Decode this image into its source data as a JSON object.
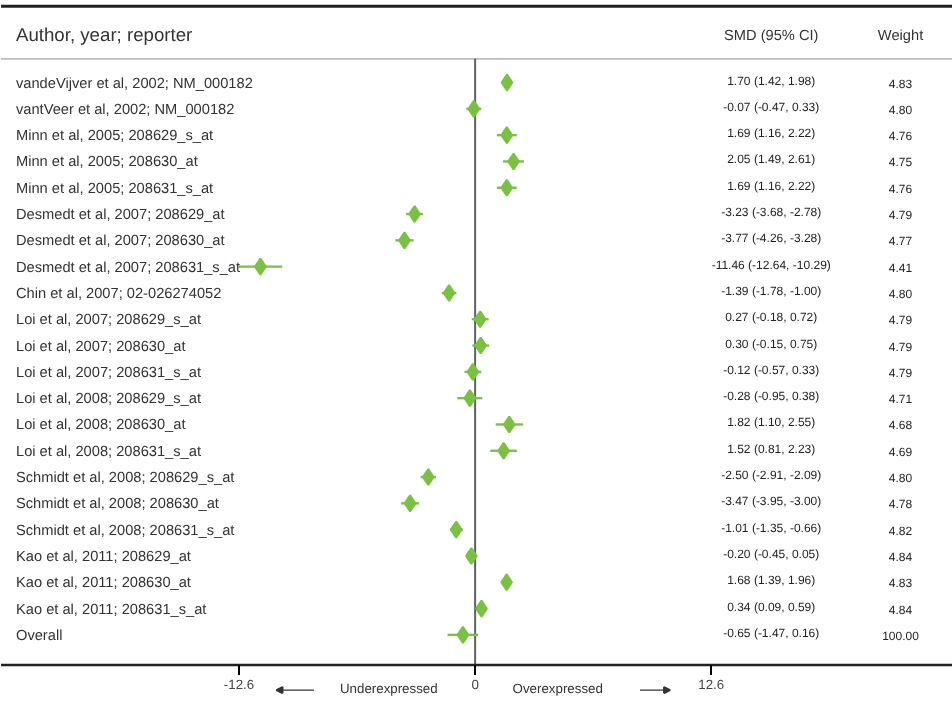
{
  "chart_data": {
    "type": "scatter",
    "orientation": "horizontal",
    "title": "Author, year; reporter",
    "categories": [
      "vandeVijver et al, 2002; NM_000182",
      "vantVeer et al, 2002; NM_000182",
      "Minn et al, 2005; 208629_s_at",
      "Minn et al, 2005; 208630_at",
      "Minn et al, 2005; 208631_s_at",
      "Desmedt et al, 2007; 208629_at",
      "Desmedt et al, 2007; 208630_at",
      "Desmedt et al, 2007; 208631_s_at",
      "Chin et al, 2007; 02-026274052",
      "Loi et al, 2007; 208629_s_at",
      "Loi et al, 2007; 208630_at",
      "Loi et al, 2007; 208631_s_at",
      "Loi et al, 2008; 208629_s_at",
      "Loi et al, 2008; 208630_at",
      "Loi et al, 2008; 208631_s_at",
      "Schmidt et al, 2008; 208629_s_at",
      "Schmidt et al, 2008; 208630_at",
      "Schmidt et al, 2008; 208631_s_at",
      "Kao et al, 2011; 208629_at",
      "Kao et al, 2011; 208630_at",
      "Kao et al, 2011; 208631_s_at",
      "Overall"
    ],
    "series": [
      {
        "color": "#7ac143",
        "values": [
          1.7,
          -0.07,
          1.69,
          2.05,
          1.69,
          -3.23,
          -3.77,
          -11.46,
          -1.39,
          0.27,
          0.3,
          -0.12,
          -0.28,
          1.82,
          1.52,
          -2.5,
          -3.47,
          -1.01,
          -0.2,
          1.68,
          0.34,
          -0.65
        ],
        "errors": [
          [
            1.42,
            1.98
          ],
          [
            -0.47,
            0.33
          ],
          [
            1.16,
            2.22
          ],
          [
            1.49,
            2.61
          ],
          [
            1.16,
            2.22
          ],
          [
            -3.68,
            -2.78
          ],
          [
            -4.26,
            -3.28
          ],
          [
            -12.64,
            -10.29
          ],
          [
            -1.78,
            -1.0
          ],
          [
            -0.18,
            0.72
          ],
          [
            -0.15,
            0.75
          ],
          [
            -0.57,
            0.33
          ],
          [
            -0.95,
            0.38
          ],
          [
            1.1,
            2.55
          ],
          [
            0.81,
            2.23
          ],
          [
            -2.91,
            -2.09
          ],
          [
            -3.95,
            -3.0
          ],
          [
            -1.35,
            -0.66
          ],
          [
            -0.45,
            0.05
          ],
          [
            1.39,
            1.96
          ],
          [
            0.09,
            0.59
          ],
          [
            -1.47,
            0.16
          ]
        ]
      }
    ],
    "marker": "diamond",
    "grid": false,
    "xlim": [
      -25.3,
      25.5
    ],
    "xticks": [
      {
        "value": -12.6,
        "label": "-12.6"
      },
      {
        "value": 0,
        "label": "0"
      },
      {
        "value": 12.6,
        "label": "12.6"
      }
    ],
    "ref_lines": [
      {
        "axis": "x",
        "value": 0,
        "color": "#606060"
      }
    ],
    "annotations": [
      "SMD (95% CI)",
      "Weight",
      "Underexpressed",
      "Overexpressed",
      "4.83",
      "4.80",
      "4.76",
      "4.75",
      "4.76",
      "4.79",
      "4.77",
      "4.41",
      "4.80",
      "4.79",
      "4.79",
      "4.79",
      "4.71",
      "4.68",
      "4.69",
      "4.80",
      "4.78",
      "4.82",
      "4.84",
      "4.83",
      "4.84",
      "100.00",
      "1.70 (1.42, 1.98)",
      "-0.07 (-0.47, 0.33)",
      "1.69 (1.16, 2.22)",
      "2.05 (1.49, 2.61)",
      "1.69 (1.16, 2.22)",
      "-3.23 (-3.68, -2.78)",
      "-3.77 (-4.26, -3.28)",
      "-11.46 (-12.64, -10.29)",
      "-1.39 (-1.78, -1.00)",
      "0.27 (-0.18, 0.72)",
      "0.30 (-0.15, 0.75)",
      "-0.12 (-0.57, 0.33)",
      "-0.28 (-0.95, 0.38)",
      "1.82 (1.10, 2.55)",
      "1.52 (0.81, 2.23)",
      "-2.50 (-2.91, -2.09)",
      "-3.47 (-3.95, -3.00)",
      "-1.01 (-1.35, -0.66)",
      "-0.20 (-0.45, 0.05)",
      "1.68 (1.39, 1.96)",
      "0.34 (0.09, 0.59)",
      "-0.65 (-1.47, 0.16)"
    ]
  }
}
